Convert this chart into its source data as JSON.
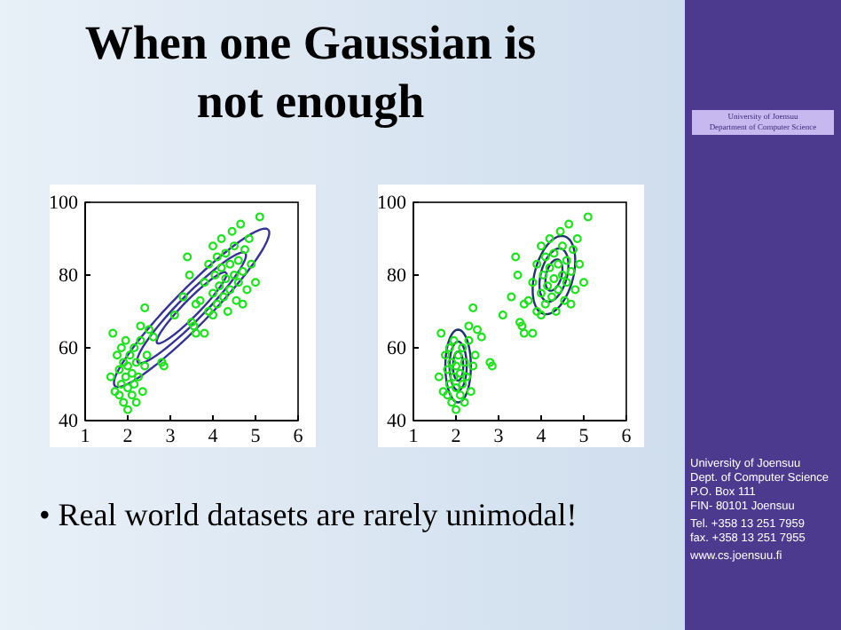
{
  "chart_data": [
    {
      "type": "scatter",
      "title": "When one Gaussian is not enough",
      "xlim": [
        1,
        6
      ],
      "xticks": [
        1,
        2,
        3,
        4,
        5,
        6
      ],
      "ylim": [
        40,
        100
      ],
      "yticks": [
        40,
        60,
        80,
        100
      ],
      "grid": false,
      "marker": "circle",
      "series": [
        {
          "type": "scatter",
          "color": "#22e022",
          "x": [
            1.6,
            1.65,
            1.7,
            1.75,
            1.8,
            1.8,
            1.85,
            1.85,
            1.9,
            1.9,
            1.95,
            1.95,
            2.0,
            2.0,
            2.0,
            2.05,
            2.1,
            2.1,
            2.15,
            2.15,
            2.2,
            2.2,
            2.25,
            2.3,
            2.35,
            2.4,
            2.45,
            2.3,
            2.4,
            2.6,
            2.5,
            2.8,
            2.85,
            3.1,
            3.3,
            3.5,
            3.55,
            3.6,
            3.8,
            3.45,
            3.4,
            3.7,
            3.8,
            3.9,
            3.9,
            4.0,
            4.0,
            4.05,
            4.1,
            4.1,
            4.15,
            4.2,
            4.2,
            4.25,
            4.3,
            4.3,
            4.35,
            4.4,
            4.4,
            4.45,
            4.5,
            4.5,
            4.55,
            4.6,
            4.6,
            4.65,
            4.7,
            4.75,
            4.8,
            4.85,
            4.9,
            5.1,
            5.0,
            4.0,
            3.6,
            4.7
          ],
          "values": [
            52,
            64,
            48,
            58,
            47,
            54,
            60,
            50,
            45,
            56,
            52,
            62,
            43,
            49,
            55,
            58,
            47,
            53,
            60,
            50,
            56,
            45,
            52,
            62,
            48,
            55,
            58,
            66,
            71,
            63,
            65,
            56,
            55,
            69,
            74,
            67,
            66,
            64,
            64,
            80,
            85,
            73,
            78,
            83,
            70,
            75,
            88,
            80,
            72,
            85,
            77,
            82,
            90,
            74,
            79,
            86,
            70,
            83,
            76,
            92,
            80,
            88,
            73,
            84,
            78,
            94,
            81,
            87,
            76,
            90,
            83,
            96,
            78,
            69,
            72,
            72
          ]
        }
      ]
    },
    {
      "type": "scatter",
      "xlim": [
        1,
        6
      ],
      "xticks": [
        1,
        2,
        3,
        4,
        5,
        6
      ],
      "ylim": [
        40,
        100
      ],
      "yticks": [
        40,
        60,
        80,
        100
      ],
      "grid": false,
      "marker": "circle",
      "series": [
        {
          "type": "scatter",
          "color": "#22e022",
          "x": [
            1.6,
            1.65,
            1.7,
            1.75,
            1.8,
            1.8,
            1.85,
            1.85,
            1.9,
            1.9,
            1.95,
            1.95,
            2.0,
            2.0,
            2.0,
            2.05,
            2.1,
            2.1,
            2.15,
            2.15,
            2.2,
            2.2,
            2.25,
            2.3,
            2.35,
            2.4,
            2.45,
            2.3,
            2.4,
            2.6,
            2.5,
            2.8,
            2.85,
            3.1,
            3.3,
            3.5,
            3.55,
            3.6,
            3.8,
            3.45,
            3.4,
            3.7,
            3.8,
            3.9,
            3.9,
            4.0,
            4.0,
            4.05,
            4.1,
            4.1,
            4.15,
            4.2,
            4.2,
            4.25,
            4.3,
            4.3,
            4.35,
            4.4,
            4.4,
            4.45,
            4.5,
            4.5,
            4.55,
            4.6,
            4.6,
            4.65,
            4.7,
            4.75,
            4.8,
            4.85,
            4.9,
            5.1,
            5.0,
            4.0,
            3.6,
            4.7
          ],
          "values": [
            52,
            64,
            48,
            58,
            47,
            54,
            60,
            50,
            45,
            56,
            52,
            62,
            43,
            49,
            55,
            58,
            47,
            53,
            60,
            50,
            56,
            45,
            52,
            62,
            48,
            55,
            58,
            66,
            71,
            63,
            65,
            56,
            55,
            69,
            74,
            67,
            66,
            64,
            64,
            80,
            85,
            73,
            78,
            83,
            70,
            75,
            88,
            80,
            72,
            85,
            77,
            82,
            90,
            74,
            79,
            86,
            70,
            83,
            76,
            92,
            80,
            88,
            73,
            84,
            78,
            94,
            81,
            87,
            76,
            90,
            83,
            96,
            78,
            69,
            72,
            72
          ]
        }
      ]
    },
    {
      "type": "other",
      "annotations": [
        "• Real world datasets are rarely unimodal!",
        "University of Joensuu",
        "Department of Computer Science",
        "University of Joensuu",
        "Dept. of Computer Science",
        "P.O. Box 111",
        "FIN- 80101 Joensuu",
        "Tel. +358 13 251 7959",
        "fax. +358 13 251 7955",
        "www.cs.joensuu.fi"
      ]
    }
  ]
}
